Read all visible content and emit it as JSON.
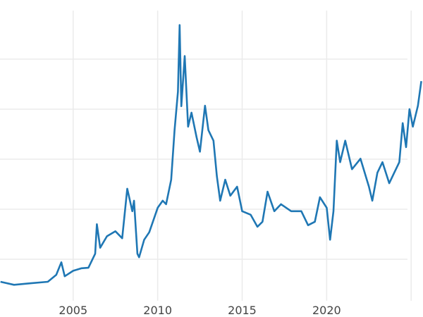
{
  "chart_data": {
    "type": "line",
    "title": "",
    "xlabel": "",
    "ylabel": "",
    "xlim": [
      2000.67,
      2025.7
    ],
    "ylim": [
      1.7,
      59.7
    ],
    "x_ticks": [
      2005,
      2010,
      2015,
      2020,
      2025
    ],
    "x_tick_labels": [
      "2005",
      "2010",
      "2015",
      "2020",
      ""
    ],
    "y_gridlines": [
      10,
      20,
      30,
      40,
      50
    ],
    "grid": true,
    "line_color": "#1f77b4",
    "series": [
      {
        "x": [
          2000.7,
          2001.5,
          2002.5,
          2003.5,
          2004.0,
          2004.3,
          2004.5,
          2005.0,
          2005.5,
          2005.9,
          2006.3,
          2006.4,
          2006.6,
          2007.0,
          2007.5,
          2007.9,
          2008.2,
          2008.5,
          2008.6,
          2008.8,
          2008.9,
          2009.2,
          2009.5,
          2010.0,
          2010.3,
          2010.5,
          2010.8,
          2011.0,
          2011.2,
          2011.3,
          2011.4,
          2011.6,
          2011.8,
          2012.0,
          2012.3,
          2012.5,
          2012.8,
          2013.0,
          2013.3,
          2013.5,
          2013.7,
          2014.0,
          2014.3,
          2014.7,
          2015.0,
          2015.5,
          2015.9,
          2016.2,
          2016.5,
          2016.9,
          2017.3,
          2017.9,
          2018.5,
          2018.9,
          2019.3,
          2019.6,
          2020.0,
          2020.2,
          2020.4,
          2020.6,
          2020.8,
          2021.1,
          2021.5,
          2022.0,
          2022.5,
          2022.7,
          2023.0,
          2023.3,
          2023.7,
          2024.0,
          2024.3,
          2024.5,
          2024.7,
          2024.9,
          2025.1,
          2025.4,
          2025.6
        ],
        "y": [
          5.5,
          4.9,
          5.2,
          5.5,
          6.9,
          9.4,
          6.6,
          7.7,
          8.2,
          8.3,
          11.1,
          17.0,
          12.3,
          14.6,
          15.6,
          14.2,
          24.1,
          19.6,
          21.7,
          11.1,
          10.4,
          13.9,
          15.4,
          20.3,
          21.7,
          21.0,
          25.9,
          35.8,
          43.5,
          56.8,
          40.6,
          50.6,
          36.5,
          39.3,
          34.4,
          31.5,
          40.7,
          35.8,
          33.7,
          26.6,
          21.7,
          25.9,
          22.7,
          24.5,
          19.6,
          18.9,
          16.5,
          17.5,
          23.5,
          19.6,
          21.0,
          19.6,
          19.6,
          16.8,
          17.5,
          22.4,
          20.3,
          13.9,
          19.6,
          33.7,
          29.4,
          33.7,
          28.0,
          30.1,
          24.5,
          21.7,
          27.3,
          29.4,
          25.2,
          27.3,
          29.4,
          37.2,
          32.4,
          40.0,
          36.5,
          40.7,
          45.6
        ]
      }
    ]
  }
}
